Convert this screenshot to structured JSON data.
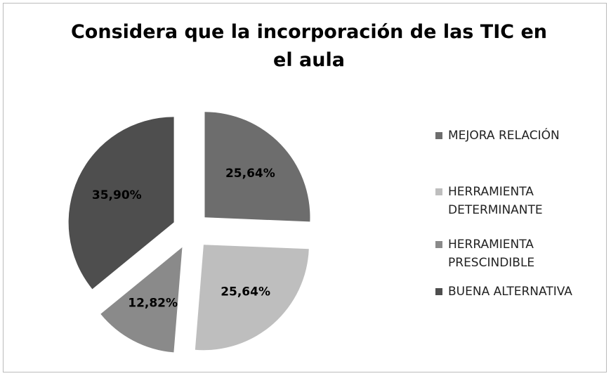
{
  "chart_data": {
    "type": "pie",
    "title": "Considera que la incorporación de las TIC en el aula",
    "categories": [
      "MEJORA RELACIÓN",
      "HERRAMIENTA DETERMINANTE",
      "HERRAMIENTA PRESCINDIBLE",
      "BUENA ALTERNATIVA"
    ],
    "values": [
      25.64,
      25.64,
      12.82,
      35.9
    ],
    "value_labels": [
      "25,64%",
      "25,64%",
      "12,82%",
      "35,90%"
    ],
    "colors": [
      "#6d6d6d",
      "#bebebe",
      "#8a8a8a",
      "#4e4e4e"
    ],
    "legend": "right"
  }
}
